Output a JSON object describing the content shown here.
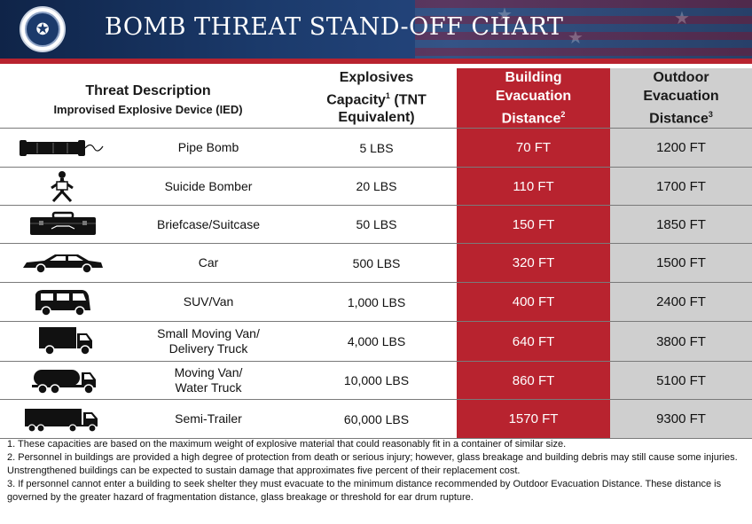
{
  "header": {
    "title": "BOMB THREAT STAND-OFF CHART",
    "seal_name": "dhs-seal"
  },
  "table": {
    "columns": {
      "threat_title": "Threat Description",
      "threat_subtitle": "Improvised Explosive Device (IED)",
      "capacity_line1": "Explosives",
      "capacity_line2": "Capacity",
      "capacity_sup": "1",
      "capacity_line2b": " (TNT",
      "capacity_line3": "Equivalent)",
      "building_line1": "Building",
      "building_line2": "Evacuation",
      "building_line3": "Distance",
      "building_sup": "2",
      "outdoor_line1": "Outdoor",
      "outdoor_line2": "Evacuation",
      "outdoor_line3": "Distance",
      "outdoor_sup": "3"
    },
    "rows": [
      {
        "icon": "pipe-bomb-icon",
        "desc1": "Pipe Bomb",
        "desc2": "",
        "capacity": "5 LBS",
        "building": "70 FT",
        "outdoor": "1200 FT"
      },
      {
        "icon": "suicide-bomber-icon",
        "desc1": "Suicide Bomber",
        "desc2": "",
        "capacity": "20 LBS",
        "building": "110 FT",
        "outdoor": "1700 FT"
      },
      {
        "icon": "briefcase-icon",
        "desc1": "Briefcase/Suitcase",
        "desc2": "",
        "capacity": "50 LBS",
        "building": "150 FT",
        "outdoor": "1850 FT"
      },
      {
        "icon": "car-icon",
        "desc1": "Car",
        "desc2": "",
        "capacity": "500 LBS",
        "building": "320 FT",
        "outdoor": "1500 FT"
      },
      {
        "icon": "van-icon",
        "desc1": "SUV/Van",
        "desc2": "",
        "capacity": "1,000 LBS",
        "building": "400 FT",
        "outdoor": "2400 FT"
      },
      {
        "icon": "delivery-truck-icon",
        "desc1": "Small Moving Van/",
        "desc2": "Delivery Truck",
        "capacity": "4,000 LBS",
        "building": "640 FT",
        "outdoor": "3800 FT"
      },
      {
        "icon": "water-truck-icon",
        "desc1": "Moving Van/",
        "desc2": "Water Truck",
        "capacity": "10,000 LBS",
        "building": "860 FT",
        "outdoor": "5100 FT"
      },
      {
        "icon": "semi-trailer-icon",
        "desc1": "Semi-Trailer",
        "desc2": "",
        "capacity": "60,000 LBS",
        "building": "1570 FT",
        "outdoor": "9300 FT"
      }
    ]
  },
  "footnotes": [
    "1. These capacities are based on the maximum weight of explosive material that could reasonably fit in a container of similar size.",
    "2. Personnel in buildings are provided a high degree of protection from death or serious injury; however,  glass breakage and building debris may still cause some injuries. Unstrengthened buildings can be expected to sustain damage that approximates five percent of their replacement cost.",
    "3.  If personnel cannot enter a building to seek shelter they must evacuate to the minimum distance recommended by Outdoor Evacuation Distance. These distance is governed by the greater hazard of fragmentation distance, glass breakage or threshold for ear drum rupture."
  ],
  "colors": {
    "banner": "#1b3a6b",
    "building_column": "#b8232f",
    "outdoor_column": "#cfcfcf"
  }
}
